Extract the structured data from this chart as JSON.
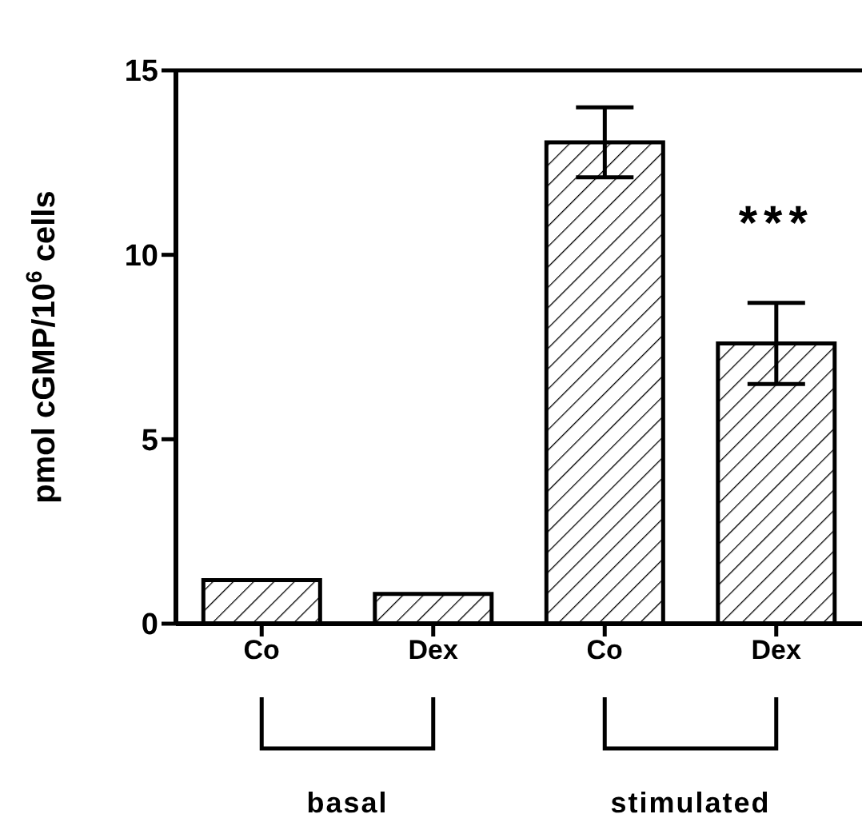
{
  "chart_data": {
    "type": "bar",
    "ylabel": "pmol cGMP/10$^{6}$ cells",
    "categories": [
      "Co",
      "Dex",
      "Co",
      "Dex"
    ],
    "values": [
      1.18,
      0.81,
      13.05,
      7.6
    ],
    "errors": [
      null,
      null,
      0.95,
      1.1
    ],
    "color": "#000000",
    "ylim": [
      0,
      15
    ],
    "yticks": [
      0,
      5,
      10,
      15
    ],
    "annotations": [
      "***",
      "basal",
      "stimulated"
    ]
  }
}
